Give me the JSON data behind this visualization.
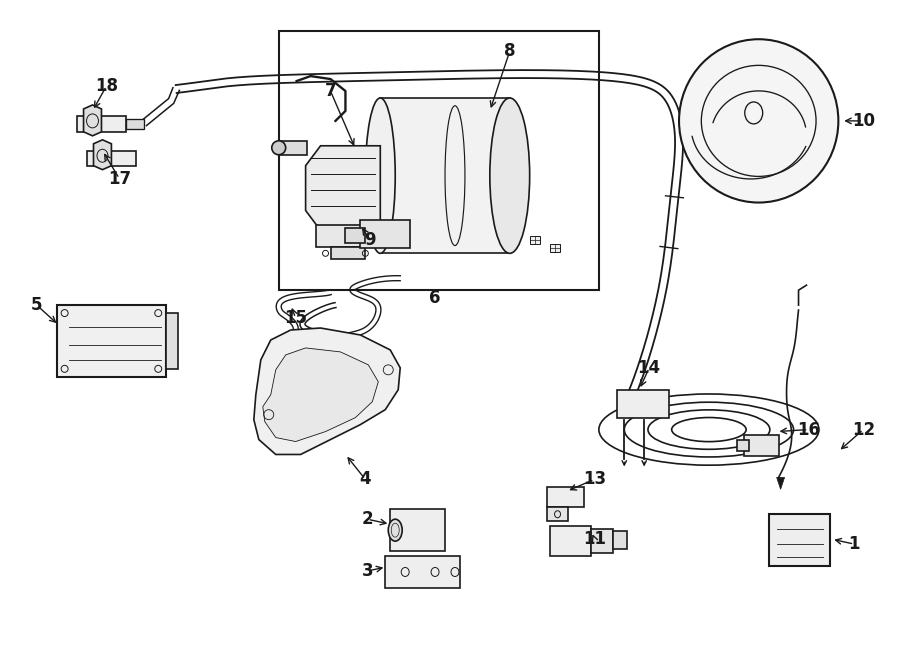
{
  "bg_color": "#ffffff",
  "lc": "#1a1a1a",
  "lw": 1.2,
  "fig_width": 9.0,
  "fig_height": 6.61,
  "dpi": 100
}
